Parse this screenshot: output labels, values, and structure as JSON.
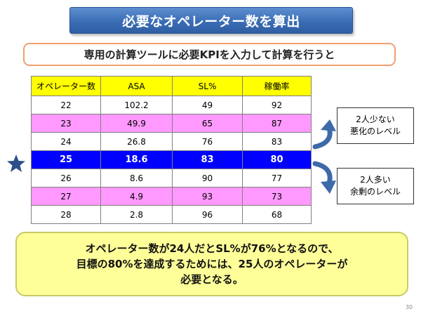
{
  "title": "必要なオペレーター数を算出",
  "subtitle": "専用の計算ツールに必要KPIを入力して計算を行うと",
  "table": {
    "headers": [
      "オペレーター数",
      "ASA",
      "SL%",
      "稼働率"
    ],
    "rows": [
      {
        "style": "white",
        "cells": [
          "22",
          "102.2",
          "49",
          "92"
        ]
      },
      {
        "style": "pink",
        "cells": [
          "23",
          "49.9",
          "65",
          "87"
        ]
      },
      {
        "style": "white",
        "cells": [
          "24",
          "26.8",
          "76",
          "83"
        ]
      },
      {
        "style": "blue",
        "cells": [
          "25",
          "18.6",
          "83",
          "80"
        ]
      },
      {
        "style": "white",
        "cells": [
          "26",
          "8.6",
          "90",
          "77"
        ]
      },
      {
        "style": "pink",
        "cells": [
          "27",
          "4.9",
          "93",
          "73"
        ]
      },
      {
        "style": "white",
        "cells": [
          "28",
          "2.8",
          "96",
          "68"
        ]
      }
    ]
  },
  "callouts": {
    "top": {
      "line1": "2人少ない",
      "line2": "悪化のレベル"
    },
    "bottom": {
      "line1": "2人多い",
      "line2": "余剰のレベル"
    }
  },
  "conclusion": {
    "line1": "オペレーター数が24人だとSL%が76%となるので、",
    "line2": "目標の80%を達成するためには、25人のオペレーターが",
    "line3": "必要となる。"
  },
  "page_number": "30",
  "colors": {
    "header_yellow": "#ffff00",
    "row_pink": "#ff99ff",
    "row_highlight": "#0000ff",
    "arrow_blue": "#3d6aa8",
    "star": "#2c4f8c"
  },
  "icons": {
    "highlight_marker": "star-icon",
    "arrows": "curved-arrow-icon"
  }
}
